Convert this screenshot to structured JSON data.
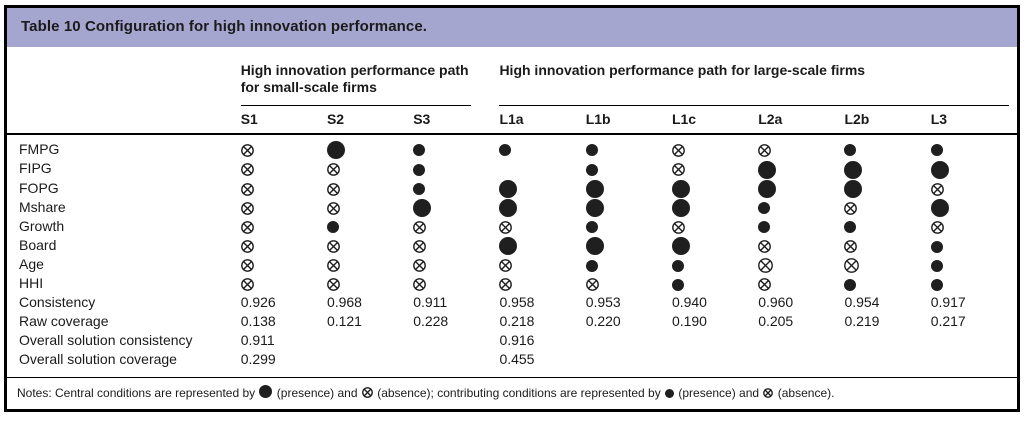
{
  "title": "Table 10 Configuration for high innovation performance.",
  "colors": {
    "title_bar_bg": "#a5a6d0",
    "symbol": "#1f1f1f",
    "border": "#000000"
  },
  "groups": [
    {
      "label": "High innovation performance path for small-scale firms",
      "columns": [
        "S1",
        "S2",
        "S3"
      ]
    },
    {
      "label": "High innovation performance path for large-scale firms",
      "columns": [
        "L1a",
        "L1b",
        "L1c",
        "L2a",
        "L2b",
        "L3"
      ]
    }
  ],
  "symbol_legend": {
    "P": "central-presence",
    "A": "central-absence",
    "p": "contributing-presence",
    "a": "contributing-absence"
  },
  "rows": [
    {
      "label": "FMPG",
      "cells": [
        "a",
        "P",
        "p",
        "p",
        "p",
        "a",
        "a",
        "p",
        "p"
      ]
    },
    {
      "label": "FIPG",
      "cells": [
        "a",
        "a",
        "p",
        "",
        "p",
        "a",
        "P",
        "P",
        "P"
      ]
    },
    {
      "label": "FOPG",
      "cells": [
        "a",
        "a",
        "p",
        "P",
        "P",
        "P",
        "P",
        "P",
        "a"
      ]
    },
    {
      "label": "Mshare",
      "cells": [
        "a",
        "a",
        "P",
        "P",
        "P",
        "P",
        "p",
        "a",
        "P"
      ]
    },
    {
      "label": "Growth",
      "cells": [
        "a",
        "p",
        "a",
        "a",
        "p",
        "a",
        "p",
        "p",
        "a"
      ]
    },
    {
      "label": "Board",
      "cells": [
        "a",
        "a",
        "a",
        "P",
        "P",
        "P",
        "a",
        "a",
        "p"
      ]
    },
    {
      "label": "Age",
      "cells": [
        "a",
        "a",
        "a",
        "a",
        "p",
        "p",
        "A",
        "A",
        "p"
      ]
    },
    {
      "label": "HHI",
      "cells": [
        "a",
        "a",
        "a",
        "a",
        "a",
        "p",
        "a",
        "p",
        "p"
      ]
    }
  ],
  "stat_rows": [
    {
      "label": "Consistency",
      "values": [
        "0.926",
        "0.968",
        "0.911",
        "0.958",
        "0.953",
        "0.940",
        "0.960",
        "0.954",
        "0.917"
      ]
    },
    {
      "label": "Raw coverage",
      "values": [
        "0.138",
        "0.121",
        "0.228",
        "0.218",
        "0.220",
        "0.190",
        "0.205",
        "0.219",
        "0.217"
      ]
    },
    {
      "label": "Overall solution consistency",
      "values": [
        "0.911",
        "",
        "",
        "0.916",
        "",
        "",
        "",
        "",
        ""
      ]
    },
    {
      "label": "Overall solution coverage",
      "values": [
        "0.299",
        "",
        "",
        "0.455",
        "",
        "",
        "",
        "",
        ""
      ]
    }
  ],
  "notes": {
    "segments": [
      {
        "t": "Notes: Central conditions are represented by "
      },
      {
        "s": "P"
      },
      {
        "t": " (presence) and "
      },
      {
        "s": "A"
      },
      {
        "t": " (absence); contributing conditions are represented by "
      },
      {
        "s": "p"
      },
      {
        "t": " (presence) and "
      },
      {
        "s": "a"
      },
      {
        "t": " (absence)."
      }
    ]
  }
}
